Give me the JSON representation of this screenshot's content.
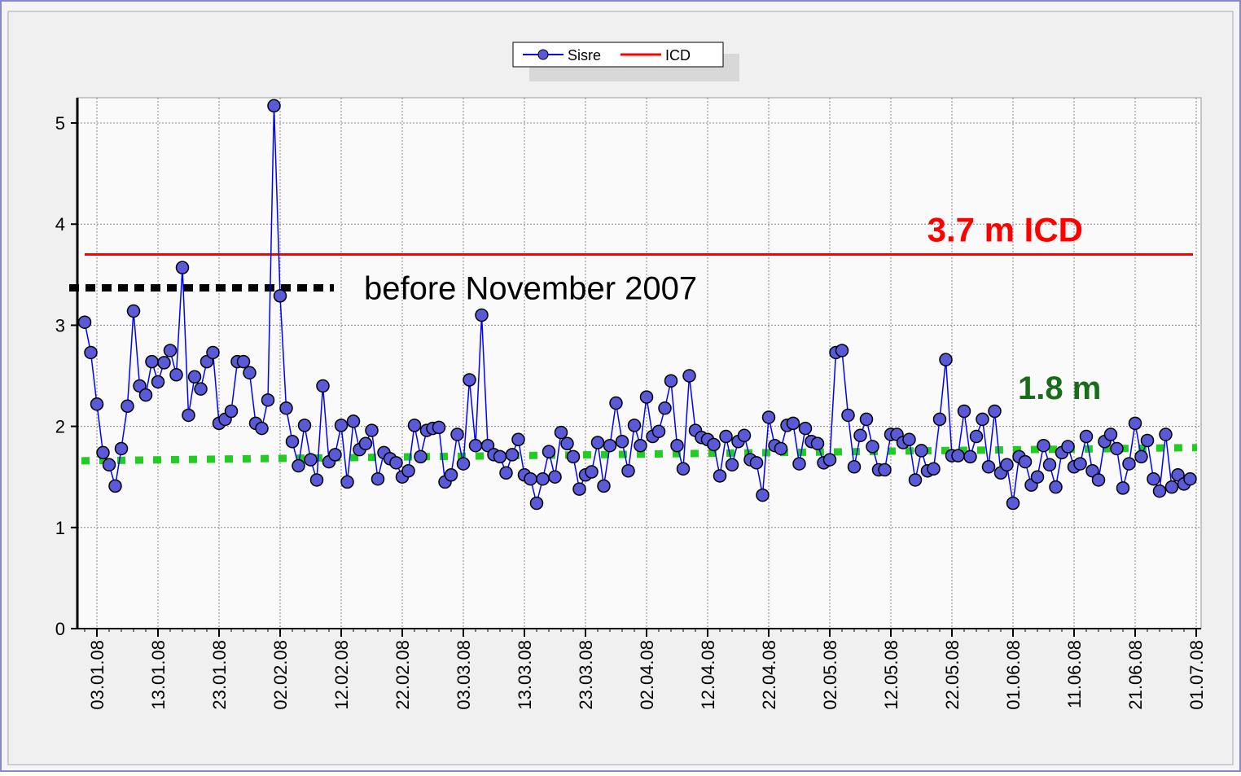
{
  "chart_data": {
    "type": "line",
    "categories": [
      null,
      null,
      "03.01.08",
      null,
      null,
      null,
      null,
      null,
      null,
      null,
      null,
      null,
      "13.01.08",
      null,
      null,
      null,
      null,
      null,
      null,
      null,
      null,
      null,
      "23.01.08",
      null,
      null,
      null,
      null,
      null,
      null,
      null,
      null,
      null,
      "02.02.08",
      null,
      null,
      null,
      null,
      null,
      null,
      null,
      null,
      null,
      "12.02.08",
      null,
      null,
      null,
      null,
      null,
      null,
      null,
      null,
      null,
      "22.02.08",
      null,
      null,
      null,
      null,
      null,
      null,
      null,
      null,
      null,
      "03.03.08",
      null,
      null,
      null,
      null,
      null,
      null,
      null,
      null,
      null,
      "13.03.08",
      null,
      null,
      null,
      null,
      null,
      null,
      null,
      null,
      null,
      "23.03.08",
      null,
      null,
      null,
      null,
      null,
      null,
      null,
      null,
      null,
      "02.04.08",
      null,
      null,
      null,
      null,
      null,
      null,
      null,
      null,
      null,
      "12.04.08",
      null,
      null,
      null,
      null,
      null,
      null,
      null,
      null,
      null,
      "22.04.08",
      null,
      null,
      null,
      null,
      null,
      null,
      null,
      null,
      null,
      "02.05.08",
      null,
      null,
      null,
      null,
      null,
      null,
      null,
      null,
      null,
      "12.05.08",
      null,
      null,
      null,
      null,
      null,
      null,
      null,
      null,
      null,
      "22.05.08",
      null,
      null,
      null,
      null,
      null,
      null,
      null,
      null,
      null,
      "01.06.08",
      null,
      null,
      null,
      null,
      null,
      null,
      null,
      null,
      null,
      "11.06.08",
      null,
      null,
      null,
      null,
      null,
      null,
      null,
      null,
      null,
      "21.06.08",
      null,
      null,
      null,
      null,
      null,
      null,
      null,
      null,
      null,
      "01.07.08"
    ],
    "series": [
      {
        "name": "Sisre",
        "color": "#0000ff",
        "marker_color": "#5a5ad8",
        "values": [
          3.03,
          2.73,
          2.22,
          1.74,
          1.62,
          1.41,
          1.78,
          2.2,
          3.14,
          2.4,
          2.31,
          2.64,
          2.44,
          2.63,
          2.75,
          2.51,
          3.57,
          2.11,
          2.49,
          2.37,
          2.64,
          2.73,
          2.03,
          2.07,
          2.15,
          2.64,
          2.64,
          2.53,
          2.03,
          1.98,
          2.26,
          5.17,
          3.29,
          2.18,
          1.85,
          1.61,
          2.01,
          1.67,
          1.47,
          2.4,
          1.65,
          1.72,
          2.01,
          1.45,
          2.05,
          1.77,
          1.83,
          1.96,
          1.48,
          1.74,
          1.68,
          1.64,
          1.5,
          1.56,
          2.01,
          1.7,
          1.96,
          1.98,
          1.99,
          1.45,
          1.52,
          1.92,
          1.63,
          2.46,
          1.81,
          3.1,
          1.81,
          1.72,
          1.7,
          1.54,
          1.72,
          1.87,
          1.52,
          1.48,
          1.24,
          1.48,
          1.75,
          1.5,
          1.94,
          1.83,
          1.7,
          1.38,
          1.52,
          1.55,
          1.84,
          1.41,
          1.81,
          2.23,
          1.85,
          1.56,
          2.01,
          1.81,
          2.29,
          1.9,
          1.95,
          2.18,
          2.45,
          1.81,
          1.58,
          2.5,
          1.96,
          1.89,
          1.87,
          1.82,
          1.51,
          1.9,
          1.62,
          1.85,
          1.91,
          1.67,
          1.64,
          1.32,
          2.09,
          1.81,
          1.78,
          2.01,
          2.03,
          1.63,
          1.98,
          1.85,
          1.83,
          1.64,
          1.67,
          2.73,
          2.75,
          2.11,
          1.6,
          1.91,
          2.07,
          1.8,
          1.57,
          1.57,
          1.92,
          1.92,
          1.84,
          1.87,
          1.47,
          1.76,
          1.56,
          1.58,
          2.07,
          2.66,
          1.71,
          1.71,
          2.15,
          1.7,
          1.9,
          2.07,
          1.6,
          2.15,
          1.54,
          1.62,
          1.24,
          1.7,
          1.65,
          1.42,
          1.5,
          1.81,
          1.62,
          1.4,
          1.74,
          1.8,
          1.6,
          1.63,
          1.9,
          1.56,
          1.47,
          1.85,
          1.92,
          1.78,
          1.39,
          1.63,
          2.03,
          1.7,
          1.86,
          1.48,
          1.36,
          1.92,
          1.4,
          1.52,
          1.43,
          1.48,
          null
        ]
      },
      {
        "name": "ICD",
        "color": "#ff0000",
        "value": 3.7
      }
    ],
    "ylim": [
      0,
      5.25
    ],
    "yticks": [
      0,
      1,
      2,
      3,
      4,
      5
    ],
    "grid": true,
    "annotations": {
      "icd": {
        "text": "3.7 m ICD",
        "color": "#ff0000"
      },
      "before": {
        "text": "before November 2007",
        "value": 3.37,
        "color": "#000000"
      },
      "trend": {
        "text": "1.8 m",
        "values": [
          1.66,
          1.79
        ],
        "color": "#22cc22",
        "text_color": "#1a6b1a"
      }
    }
  }
}
